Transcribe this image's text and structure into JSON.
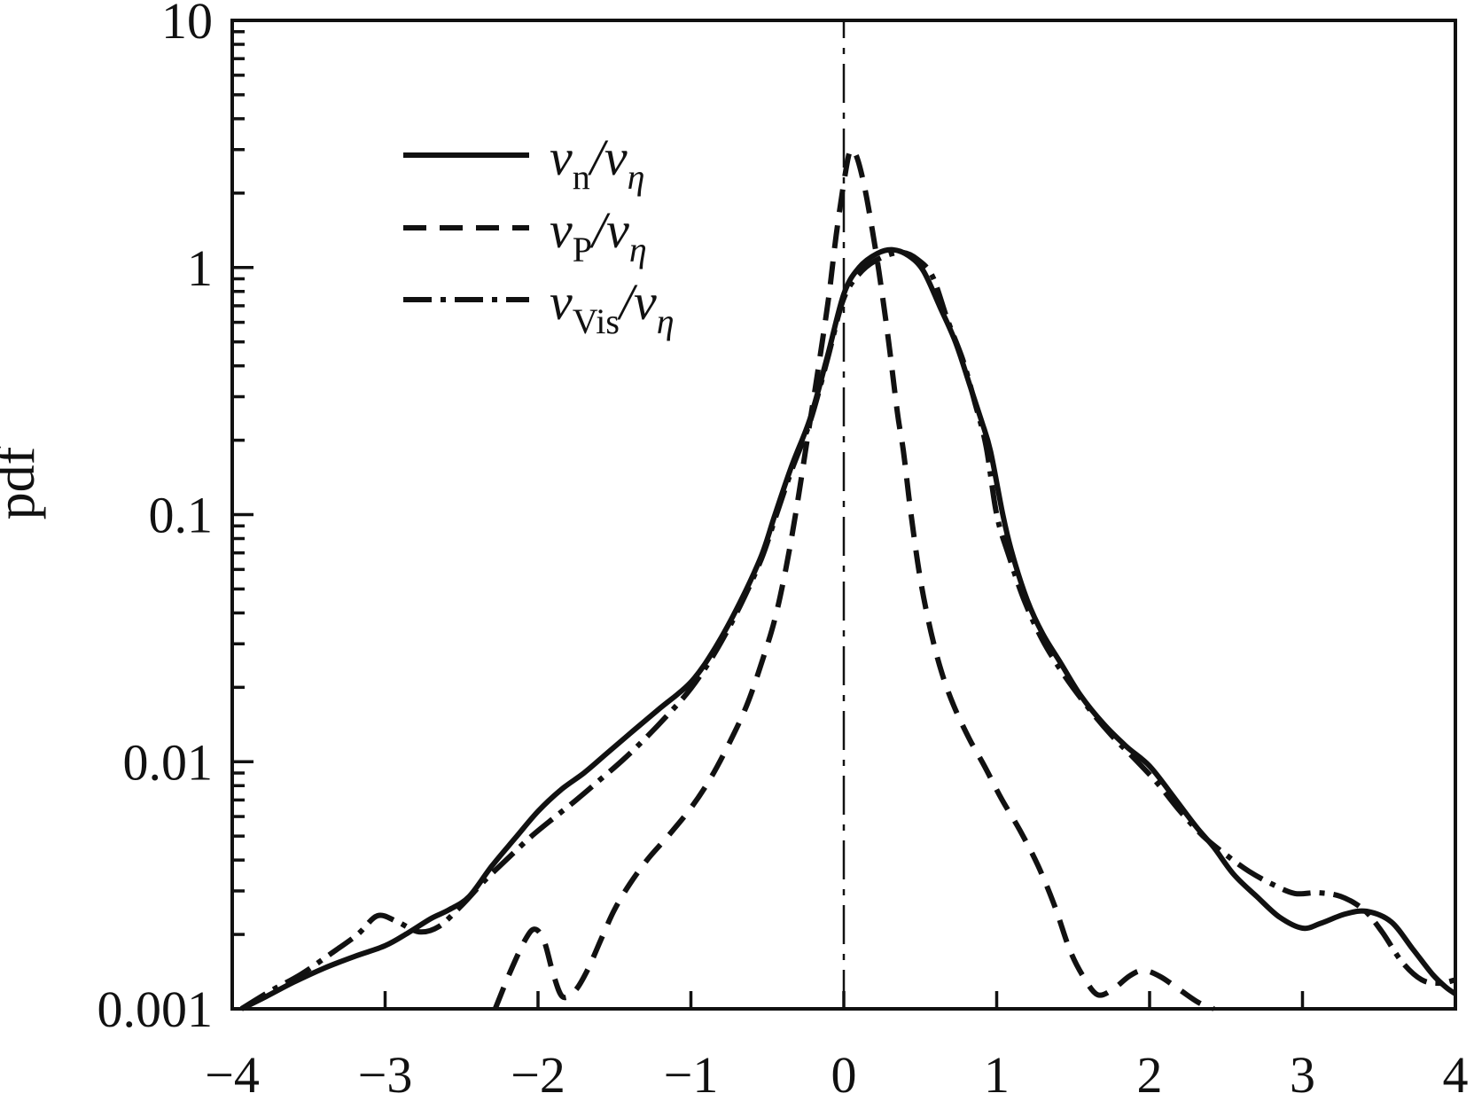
{
  "figure": {
    "background": "#ffffff",
    "ink": "#111111"
  },
  "chart_data": {
    "type": "line",
    "title": "",
    "xlabel": "",
    "ylabel": "pdf",
    "x_scale": "linear",
    "y_scale": "log",
    "xlim": [
      -4,
      4
    ],
    "ylim": [
      0.001,
      10
    ],
    "grid": false,
    "x_ticks": {
      "values": [
        -4,
        -3,
        -2,
        -1,
        0,
        1,
        2,
        3,
        4
      ],
      "labels": [
        "−4",
        "−3",
        "−2",
        "−1",
        "0",
        "1",
        "2",
        "3",
        "4"
      ]
    },
    "y_ticks": {
      "values": [
        10,
        1,
        0.1,
        0.01,
        0.001
      ],
      "labels": [
        "10",
        "1",
        "0.1",
        "0.01",
        "0.001"
      ]
    },
    "y_minor_ticks": "log-decades-2-to-9",
    "reference_line": {
      "x": 0,
      "style": "thin-dashdot"
    },
    "legend": {
      "position": "upper-left-inside",
      "entries": [
        {
          "series": "vn",
          "style": "solid",
          "label_text": "v_n / v_eta",
          "label_parts": [
            {
              "text": "v",
              "kind": "main-italic"
            },
            {
              "text": "n",
              "kind": "sub"
            },
            {
              "text": "/v",
              "kind": "main-italic"
            },
            {
              "text": "η",
              "kind": "sub-italic"
            }
          ]
        },
        {
          "series": "vp",
          "style": "dashed",
          "label_text": "v_P / v_eta",
          "label_parts": [
            {
              "text": "v",
              "kind": "main-italic"
            },
            {
              "text": "P",
              "kind": "sub"
            },
            {
              "text": "/v",
              "kind": "main-italic"
            },
            {
              "text": "η",
              "kind": "sub-italic"
            }
          ]
        },
        {
          "series": "vvis",
          "style": "dashdot",
          "label_text": "v_Vis / v_eta",
          "label_parts": [
            {
              "text": "v",
              "kind": "main-italic"
            },
            {
              "text": "Vis",
              "kind": "sub"
            },
            {
              "text": "/v",
              "kind": "main-italic"
            },
            {
              "text": "η",
              "kind": "sub-italic"
            }
          ]
        }
      ]
    },
    "series": [
      {
        "id": "vn",
        "name": "v_n / v_eta",
        "style": "solid",
        "peak": {
          "x": 0.32,
          "y": 1.18
        },
        "points": [
          [
            -3.94,
            0.001
          ],
          [
            -3.78,
            0.00112
          ],
          [
            -3.6,
            0.00128
          ],
          [
            -3.4,
            0.00146
          ],
          [
            -3.2,
            0.00163
          ],
          [
            -3.0,
            0.0018
          ],
          [
            -2.85,
            0.00203
          ],
          [
            -2.7,
            0.00232
          ],
          [
            -2.58,
            0.00252
          ],
          [
            -2.45,
            0.00285
          ],
          [
            -2.3,
            0.0038
          ],
          [
            -2.15,
            0.0049
          ],
          [
            -2.0,
            0.0063
          ],
          [
            -1.85,
            0.0077
          ],
          [
            -1.7,
            0.009
          ],
          [
            -1.55,
            0.0108
          ],
          [
            -1.38,
            0.0133
          ],
          [
            -1.2,
            0.0165
          ],
          [
            -1.0,
            0.021
          ],
          [
            -0.84,
            0.029
          ],
          [
            -0.68,
            0.044
          ],
          [
            -0.54,
            0.068
          ],
          [
            -0.45,
            0.1
          ],
          [
            -0.34,
            0.158
          ],
          [
            -0.22,
            0.245
          ],
          [
            -0.11,
            0.43
          ],
          [
            0.0,
            0.78
          ],
          [
            0.1,
            1.0
          ],
          [
            0.22,
            1.14
          ],
          [
            0.32,
            1.18
          ],
          [
            0.42,
            1.12
          ],
          [
            0.52,
            0.97
          ],
          [
            0.63,
            0.69
          ],
          [
            0.73,
            0.5
          ],
          [
            0.82,
            0.34
          ],
          [
            0.9,
            0.24
          ],
          [
            0.96,
            0.18
          ],
          [
            1.04,
            0.1
          ],
          [
            1.1,
            0.07
          ],
          [
            1.2,
            0.045
          ],
          [
            1.3,
            0.033
          ],
          [
            1.42,
            0.025
          ],
          [
            1.55,
            0.0185
          ],
          [
            1.7,
            0.0142
          ],
          [
            1.85,
            0.0115
          ],
          [
            2.0,
            0.0096
          ],
          [
            2.15,
            0.0073
          ],
          [
            2.3,
            0.0055
          ],
          [
            2.42,
            0.0045
          ],
          [
            2.55,
            0.0035
          ],
          [
            2.7,
            0.00285
          ],
          [
            2.85,
            0.00235
          ],
          [
            3.0,
            0.00212
          ],
          [
            3.12,
            0.00222
          ],
          [
            3.28,
            0.00242
          ],
          [
            3.42,
            0.00248
          ],
          [
            3.58,
            0.00225
          ],
          [
            3.72,
            0.00175
          ],
          [
            3.85,
            0.00138
          ],
          [
            3.94,
            0.00122
          ],
          [
            4.0,
            0.00115
          ]
        ]
      },
      {
        "id": "vp",
        "name": "v_P / v_eta",
        "style": "dashed",
        "peak": {
          "x": 0.04,
          "y": 2.95
        },
        "points": [
          [
            -2.28,
            0.001
          ],
          [
            -2.18,
            0.00142
          ],
          [
            -2.08,
            0.00192
          ],
          [
            -2.02,
            0.0021
          ],
          [
            -1.96,
            0.00188
          ],
          [
            -1.9,
            0.00138
          ],
          [
            -1.84,
            0.00112
          ],
          [
            -1.76,
            0.00118
          ],
          [
            -1.68,
            0.00142
          ],
          [
            -1.58,
            0.00196
          ],
          [
            -1.5,
            0.00252
          ],
          [
            -1.4,
            0.0032
          ],
          [
            -1.28,
            0.00405
          ],
          [
            -1.15,
            0.005
          ],
          [
            -1.0,
            0.0065
          ],
          [
            -0.87,
            0.0086
          ],
          [
            -0.74,
            0.0122
          ],
          [
            -0.63,
            0.0172
          ],
          [
            -0.53,
            0.026
          ],
          [
            -0.45,
            0.038
          ],
          [
            -0.38,
            0.06
          ],
          [
            -0.31,
            0.105
          ],
          [
            -0.24,
            0.2
          ],
          [
            -0.17,
            0.38
          ],
          [
            -0.1,
            0.75
          ],
          [
            -0.05,
            1.35
          ],
          [
            0.0,
            2.2
          ],
          [
            0.04,
            2.95
          ],
          [
            0.08,
            2.85
          ],
          [
            0.13,
            2.2
          ],
          [
            0.18,
            1.5
          ],
          [
            0.23,
            0.96
          ],
          [
            0.29,
            0.52
          ],
          [
            0.35,
            0.26
          ],
          [
            0.39,
            0.18
          ],
          [
            0.44,
            0.1
          ],
          [
            0.5,
            0.055
          ],
          [
            0.57,
            0.0335
          ],
          [
            0.64,
            0.023
          ],
          [
            0.72,
            0.0168
          ],
          [
            0.82,
            0.0124
          ],
          [
            0.92,
            0.0096
          ],
          [
            1.03,
            0.0071
          ],
          [
            1.15,
            0.0053
          ],
          [
            1.27,
            0.0038
          ],
          [
            1.38,
            0.0026
          ],
          [
            1.48,
            0.00172
          ],
          [
            1.57,
            0.00134
          ],
          [
            1.66,
            0.00114
          ],
          [
            1.76,
            0.0012
          ],
          [
            1.87,
            0.00136
          ],
          [
            1.96,
            0.00143
          ],
          [
            2.07,
            0.00135
          ],
          [
            2.2,
            0.00119
          ],
          [
            2.32,
            0.00106
          ],
          [
            2.42,
            0.001
          ]
        ]
      },
      {
        "id": "vvis",
        "name": "v_Vis / v_eta",
        "style": "dashdot",
        "peak": {
          "x": 0.38,
          "y": 1.15
        },
        "points": [
          [
            -3.94,
            0.001
          ],
          [
            -3.75,
            0.00118
          ],
          [
            -3.55,
            0.00138
          ],
          [
            -3.35,
            0.00168
          ],
          [
            -3.18,
            0.002
          ],
          [
            -3.05,
            0.00238
          ],
          [
            -2.92,
            0.00225
          ],
          [
            -2.78,
            0.00205
          ],
          [
            -2.65,
            0.00215
          ],
          [
            -2.5,
            0.00262
          ],
          [
            -2.35,
            0.0033
          ],
          [
            -2.2,
            0.00405
          ],
          [
            -2.05,
            0.00495
          ],
          [
            -1.9,
            0.0059
          ],
          [
            -1.75,
            0.007
          ],
          [
            -1.6,
            0.0084
          ],
          [
            -1.45,
            0.0101
          ],
          [
            -1.3,
            0.0124
          ],
          [
            -1.15,
            0.0155
          ],
          [
            -1.0,
            0.0198
          ],
          [
            -0.84,
            0.0278
          ],
          [
            -0.68,
            0.0425
          ],
          [
            -0.54,
            0.066
          ],
          [
            -0.45,
            0.096
          ],
          [
            -0.34,
            0.152
          ],
          [
            -0.22,
            0.238
          ],
          [
            -0.11,
            0.418
          ],
          [
            0.0,
            0.75
          ],
          [
            0.12,
            0.97
          ],
          [
            0.25,
            1.1
          ],
          [
            0.38,
            1.15
          ],
          [
            0.48,
            1.08
          ],
          [
            0.58,
            0.92
          ],
          [
            0.68,
            0.61
          ],
          [
            0.78,
            0.42
          ],
          [
            0.86,
            0.28
          ],
          [
            0.93,
            0.19
          ],
          [
            1.0,
            0.1
          ],
          [
            1.08,
            0.068
          ],
          [
            1.18,
            0.045
          ],
          [
            1.3,
            0.031
          ],
          [
            1.45,
            0.022
          ],
          [
            1.6,
            0.0165
          ],
          [
            1.75,
            0.0128
          ],
          [
            1.9,
            0.0103
          ],
          [
            2.05,
            0.0082
          ],
          [
            2.2,
            0.0063
          ],
          [
            2.35,
            0.005
          ],
          [
            2.5,
            0.0042
          ],
          [
            2.65,
            0.0036
          ],
          [
            2.8,
            0.0032
          ],
          [
            2.95,
            0.00293
          ],
          [
            3.1,
            0.00295
          ],
          [
            3.25,
            0.00285
          ],
          [
            3.4,
            0.00252
          ],
          [
            3.52,
            0.00205
          ],
          [
            3.65,
            0.00155
          ],
          [
            3.78,
            0.00131
          ],
          [
            3.9,
            0.00127
          ],
          [
            4.0,
            0.00131
          ]
        ]
      }
    ]
  }
}
